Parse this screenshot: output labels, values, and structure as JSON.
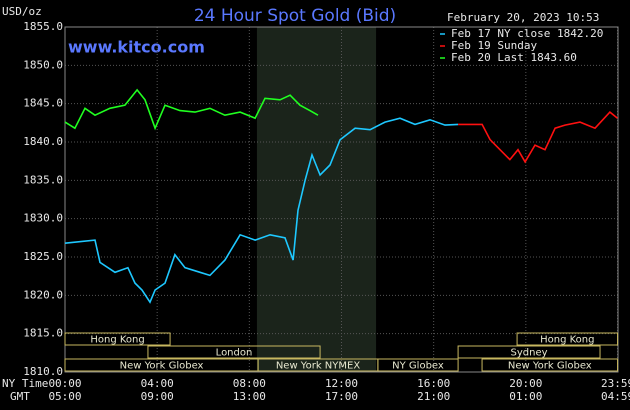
{
  "chart_data": {
    "type": "line",
    "title": "24 Hour Spot Gold (Bid)",
    "subtitle": "www.kitco.com",
    "timestamp": "February 20, 2023 10:53",
    "y_label": "USD/oz",
    "x_label": "NY Time",
    "x2_label": "GMT",
    "background": "#000000",
    "grid": true,
    "legend": "top-right",
    "xlim": [
      0,
      24
    ],
    "ylim": [
      1810,
      1855
    ],
    "yticks": [
      {
        "value": 1810,
        "label": "1810.0"
      },
      {
        "value": 1815,
        "label": "1815.0"
      },
      {
        "value": 1820,
        "label": "1820.0"
      },
      {
        "value": 1825,
        "label": "1825.0"
      },
      {
        "value": 1830,
        "label": "1830.0"
      },
      {
        "value": 1835,
        "label": "1835.0"
      },
      {
        "value": 1840,
        "label": "1840.0"
      },
      {
        "value": 1845,
        "label": "1845.0"
      },
      {
        "value": 1850,
        "label": "1850.0"
      },
      {
        "value": 1855,
        "label": "1855.0"
      }
    ],
    "xticks": [
      {
        "value": 0,
        "label": "00:00"
      },
      {
        "value": 4,
        "label": "04:00"
      },
      {
        "value": 8,
        "label": "08:00"
      },
      {
        "value": 12,
        "label": "12:00"
      },
      {
        "value": 16,
        "label": "16:00"
      },
      {
        "value": 20,
        "label": "20:00"
      },
      {
        "value": 23.98,
        "label": "23:59"
      }
    ],
    "x2ticks": [
      {
        "value": 0,
        "label": "05:00"
      },
      {
        "value": 4,
        "label": "09:00"
      },
      {
        "value": 8,
        "label": "13:00"
      },
      {
        "value": 12,
        "label": "17:00"
      },
      {
        "value": 16,
        "label": "21:00"
      },
      {
        "value": 20,
        "label": "01:00"
      },
      {
        "value": 23.98,
        "label": "04:59"
      }
    ],
    "shaded_range": [
      8.33,
      13.5
    ],
    "series": [
      {
        "name": "Feb 17 NY close 1842.20",
        "color": "#1ec8ff",
        "x": [
          0,
          1.3,
          1.52,
          2.17,
          2.73,
          3.04,
          3.34,
          3.69,
          3.91,
          4.34,
          4.77,
          5.21,
          5.86,
          6.29,
          6.94,
          7.6,
          8.25,
          8.9,
          9.55,
          9.9,
          10.11,
          10.42,
          10.72,
          11.07,
          11.5,
          11.94,
          12.59,
          13.24,
          13.89,
          14.54,
          15.19,
          15.84,
          16.49,
          17.06
        ],
        "values": [
          1826.8,
          1827.2,
          1824.3,
          1823.0,
          1823.6,
          1821.6,
          1820.7,
          1819.1,
          1820.7,
          1821.6,
          1825.3,
          1823.6,
          1823.0,
          1822.6,
          1824.6,
          1827.9,
          1827.2,
          1827.9,
          1827.5,
          1824.6,
          1831.1,
          1835.0,
          1838.3,
          1835.7,
          1837.0,
          1840.3,
          1841.8,
          1841.6,
          1842.6,
          1843.1,
          1842.3,
          1842.9,
          1842.2,
          1842.3
        ]
      },
      {
        "name": "Feb 19 Sunday",
        "color": "#ff1010",
        "x": [
          17.06,
          18.1,
          18.45,
          18.88,
          19.31,
          19.66,
          19.97,
          20.4,
          20.83,
          21.27,
          21.7,
          22.35,
          23.0,
          23.65,
          23.98
        ],
        "values": [
          1842.3,
          1842.3,
          1840.3,
          1839.0,
          1837.7,
          1839.0,
          1837.4,
          1839.6,
          1839.0,
          1841.8,
          1842.2,
          1842.6,
          1841.8,
          1843.9,
          1843.1
        ]
      },
      {
        "name": "Feb 20 Last 1843.60",
        "color": "#20ff20",
        "x": [
          0,
          0.43,
          0.87,
          1.3,
          1.95,
          2.6,
          3.13,
          3.47,
          3.91,
          4.34,
          4.99,
          5.64,
          6.29,
          6.94,
          7.6,
          8.25,
          8.68,
          9.33,
          9.77,
          10.2,
          10.63,
          10.98
        ],
        "values": [
          1842.6,
          1841.8,
          1844.4,
          1843.5,
          1844.4,
          1844.8,
          1846.8,
          1845.5,
          1841.8,
          1844.8,
          1844.1,
          1843.9,
          1844.4,
          1843.5,
          1843.9,
          1843.1,
          1845.7,
          1845.5,
          1846.1,
          1844.8,
          1844.1,
          1843.5
        ]
      }
    ],
    "sessions": [
      {
        "label": "Hong Kong",
        "start": 0,
        "end": 4.56,
        "row": 0
      },
      {
        "label": "London",
        "start": 3.6,
        "end": 11.07,
        "row": 1
      },
      {
        "label": "New York Globex",
        "start": 0,
        "end": 8.38,
        "row": 2
      },
      {
        "label": "New York NYMEX",
        "start": 8.38,
        "end": 13.58,
        "row": 2
      },
      {
        "label": "NY Globex",
        "start": 13.58,
        "end": 17.06,
        "row": 2
      },
      {
        "label": "Hong Kong",
        "start": 19.62,
        "end": 23.98,
        "row": 0
      },
      {
        "label": "Sydney",
        "start": 17.06,
        "end": 23.22,
        "row": 1
      },
      {
        "label": "New York Globex",
        "start": 18.1,
        "end": 23.98,
        "row": 2
      }
    ]
  }
}
